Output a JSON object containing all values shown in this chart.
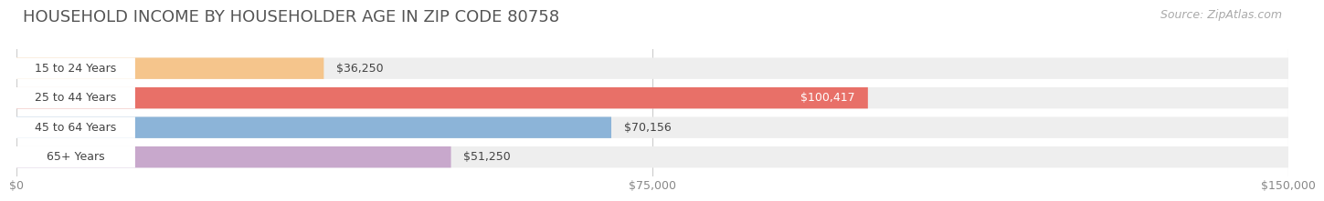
{
  "title": "HOUSEHOLD INCOME BY HOUSEHOLDER AGE IN ZIP CODE 80758",
  "source": "Source: ZipAtlas.com",
  "categories": [
    "15 to 24 Years",
    "25 to 44 Years",
    "45 to 64 Years",
    "65+ Years"
  ],
  "values": [
    36250,
    100417,
    70156,
    51250
  ],
  "bar_colors": [
    "#f5c58c",
    "#e87068",
    "#8cb4d8",
    "#c8a8cc"
  ],
  "value_labels": [
    "$36,250",
    "$100,417",
    "$70,156",
    "$51,250"
  ],
  "value_inside": [
    false,
    true,
    false,
    false
  ],
  "xlim": [
    0,
    150000
  ],
  "xticks": [
    0,
    75000,
    150000
  ],
  "xtick_labels": [
    "$0",
    "$75,000",
    "$150,000"
  ],
  "background_color": "#ffffff",
  "bar_bg_color": "#eeeeee",
  "title_fontsize": 13,
  "source_fontsize": 9,
  "bar_height": 0.72,
  "fig_width": 14.06,
  "fig_height": 2.33
}
